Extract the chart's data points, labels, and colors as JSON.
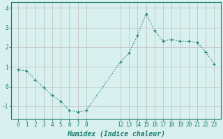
{
  "x": [
    0,
    1,
    2,
    3,
    4,
    5,
    6,
    7,
    8,
    12,
    13,
    14,
    15,
    16,
    17,
    18,
    19,
    20,
    21,
    22,
    23
  ],
  "y": [
    0.85,
    0.8,
    0.35,
    -0.05,
    -0.45,
    -0.75,
    -1.2,
    -1.3,
    -1.2,
    1.25,
    1.7,
    2.6,
    3.7,
    2.85,
    2.3,
    2.4,
    2.3,
    2.3,
    2.25,
    1.75,
    1.15
  ],
  "line_color": "#1a7a6e",
  "marker": "+",
  "markersize": 3,
  "linewidth": 0.9,
  "bg_color": "#d8f0ee",
  "grid_color": "#c0b8c0",
  "xlabel": "Humidex (Indice chaleur)",
  "xlabel_fontsize": 7,
  "xlabel_fontstyle": "italic",
  "xlabel_fontweight": "bold",
  "xticks": [
    0,
    1,
    2,
    3,
    4,
    5,
    6,
    7,
    8,
    12,
    13,
    14,
    15,
    16,
    17,
    18,
    19,
    20,
    21,
    22,
    23
  ],
  "yticks": [
    -1,
    0,
    1,
    2,
    3,
    4
  ],
  "xlim": [
    -0.8,
    23.8
  ],
  "ylim": [
    -1.65,
    4.3
  ],
  "tick_fontsize": 5.5,
  "tick_color": "#1a7a6e",
  "spine_color": "#1a7a6e"
}
